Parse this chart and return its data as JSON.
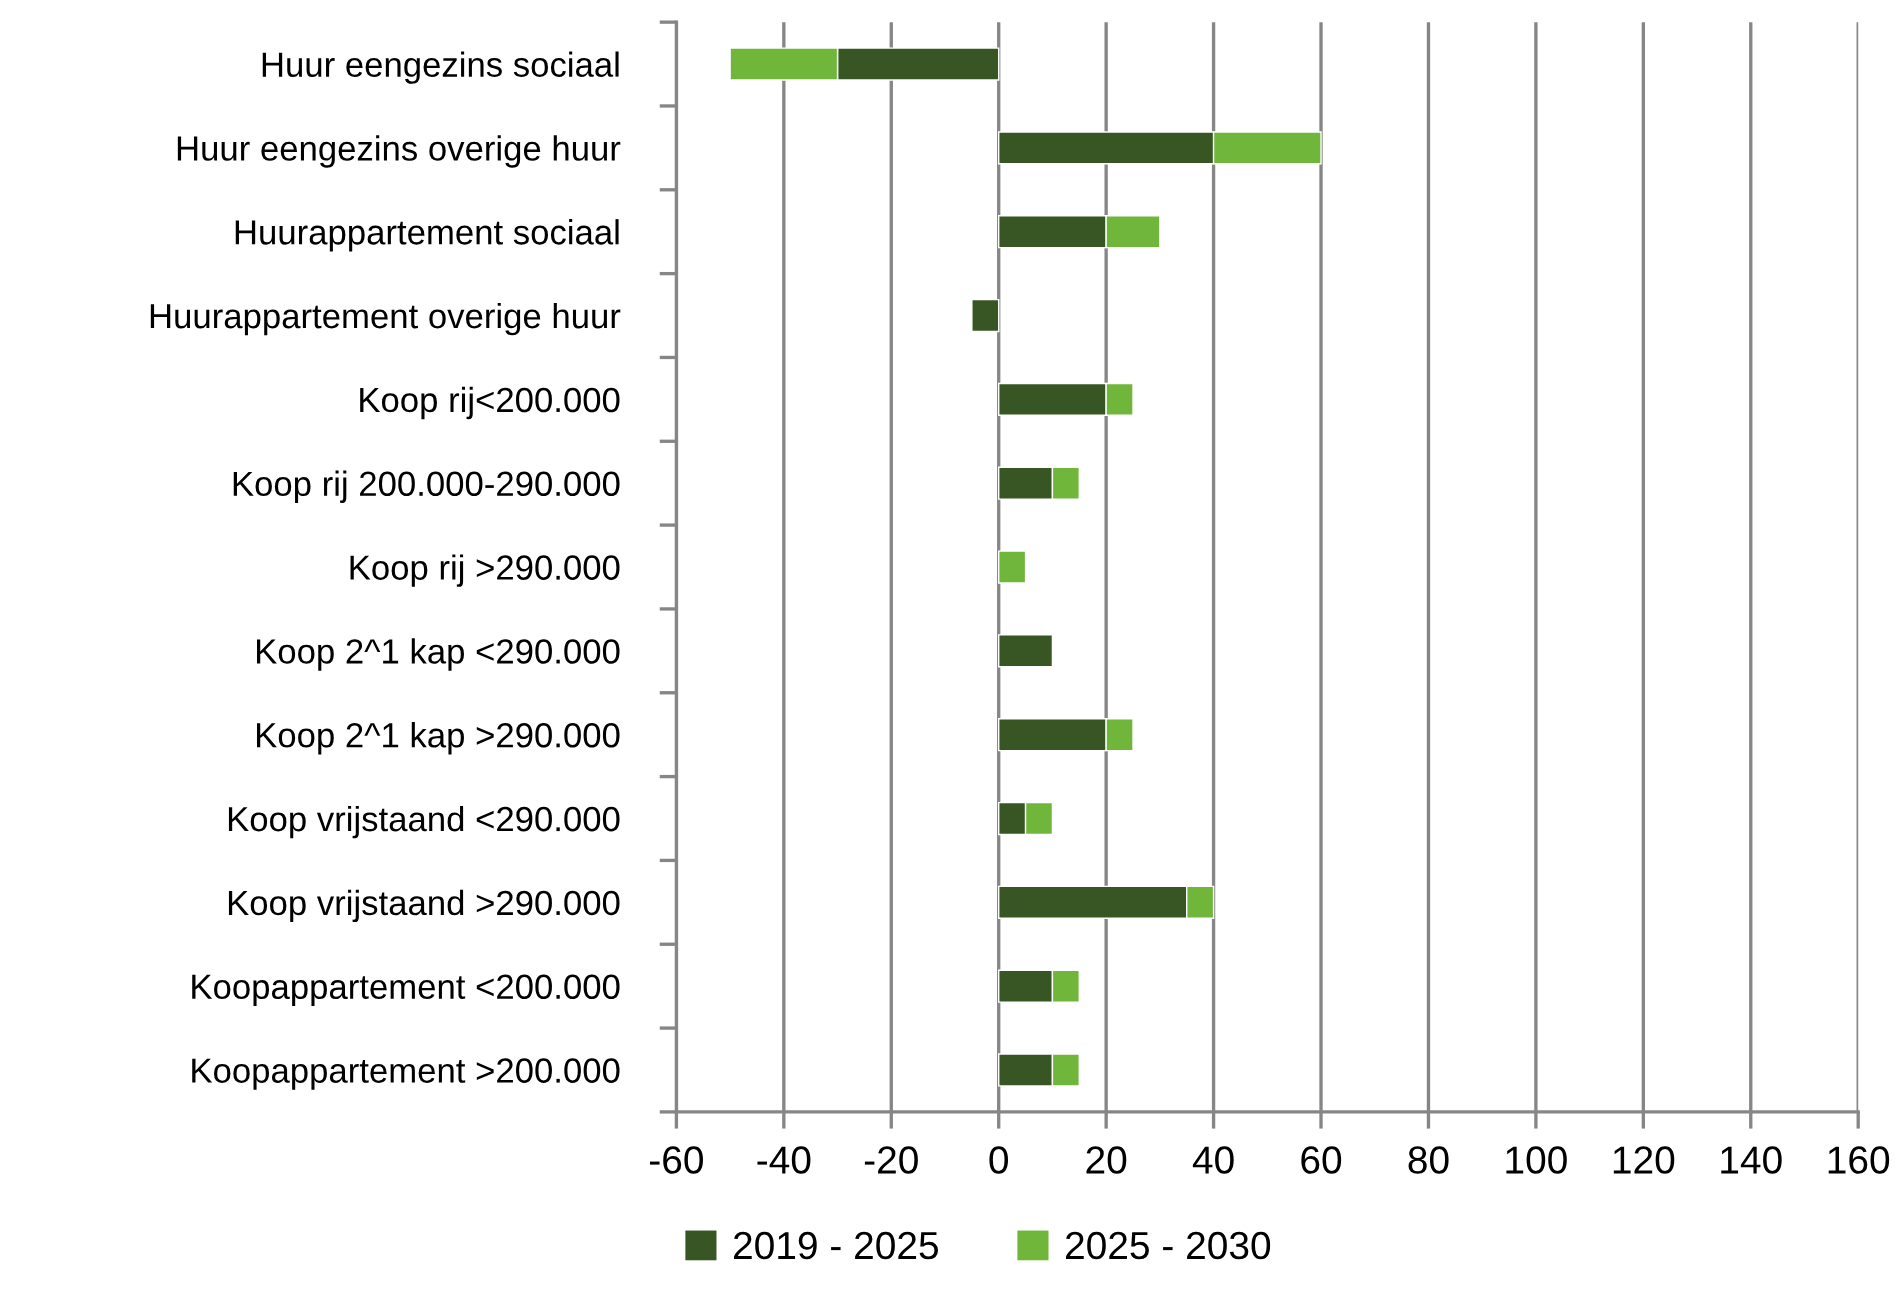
{
  "chart_data": {
    "type": "bar",
    "orientation": "horizontal",
    "stacked": true,
    "categories": [
      "Huur eengezins sociaal",
      "Huur eengezins overige huur",
      "Huurappartement sociaal",
      "Huurappartement overige huur",
      "Koop rij<200.000",
      "Koop rij 200.000-290.000",
      "Koop rij >290.000",
      "Koop 2^1 kap <290.000",
      "Koop 2^1 kap >290.000",
      "Koop vrijstaand <290.000",
      "Koop vrijstaand >290.000",
      "Koopappartement <200.000",
      "Koopappartement >200.000"
    ],
    "series": [
      {
        "name": "2019 - 2025",
        "color": "#375623",
        "values": [
          -30,
          40,
          20,
          -5,
          20,
          10,
          null,
          10,
          20,
          5,
          35,
          10,
          10
        ]
      },
      {
        "name": "2025 - 2030",
        "color": "#70b63a",
        "values": [
          -20,
          20,
          10,
          null,
          5,
          5,
          5,
          null,
          5,
          5,
          5,
          5,
          5
        ]
      }
    ],
    "xlim": [
      -60,
      160
    ],
    "xticks": [
      -60,
      -40,
      -20,
      0,
      20,
      40,
      60,
      80,
      100,
      120,
      140,
      160
    ],
    "grid": "x",
    "legend": "bottom"
  }
}
